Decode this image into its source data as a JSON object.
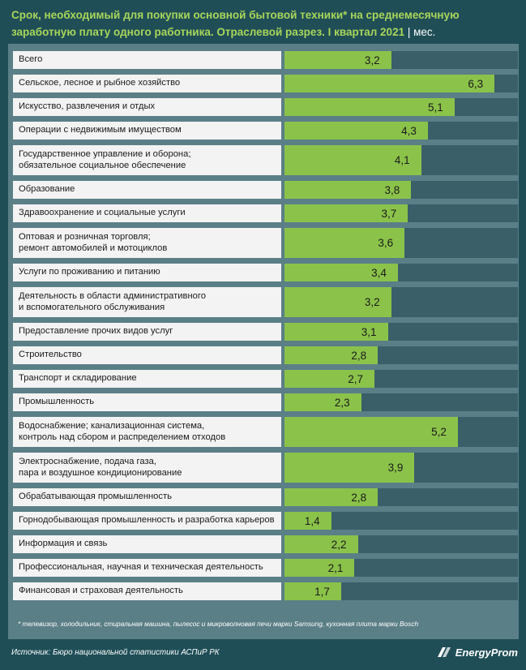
{
  "title": "Срок, необходимый для покупки основной бытовой техники* на среднемесячную заработную плату одного работника. Отраслевой разрез. I квартал 2021",
  "unit": "| мес.",
  "chart_data": {
    "type": "bar",
    "orientation": "horizontal",
    "title": "Срок, необходимый для покупки основной бытовой техники* на среднемесячную заработную плату одного работника. Отраслевой разрез. I квартал 2021",
    "unit": "мес.",
    "xlim": [
      0,
      7
    ],
    "categories": [
      "Всего",
      "Сельское, лесное и рыбное хозяйство",
      "Искусство, развлечения и отдых",
      "Операции с недвижимым имуществом",
      "Государственное управление и оборона;\nобязательное социальное обеспечение",
      "Образование",
      "Здравоохранение и социальные услуги",
      "Оптовая и розничная торговля;\nремонт автомобилей и мотоциклов",
      "Услуги по проживанию и питанию",
      "Деятельность в области административного\nи вспомогательного обслуживания",
      "Предоставление прочих видов услуг",
      "Строительство",
      "Транспорт и складирование",
      "Промышленность",
      "Водоснабжение; канализационная система,\nконтроль над сбором и распределением отходов",
      "Электроснабжение, подача газа,\nпара и воздушное кондиционирование",
      "Обрабатывающая промышленность",
      "Горнодобывающая промышленность и разработка карьеров",
      "Информация и связь",
      "Профессиональная, научная и техническая деятельность",
      "Финансовая и страховая деятельность"
    ],
    "values": [
      3.2,
      6.3,
      5.1,
      4.3,
      4.1,
      3.8,
      3.7,
      3.6,
      3.4,
      3.2,
      3.1,
      2.8,
      2.7,
      2.3,
      5.2,
      3.9,
      2.8,
      1.4,
      2.2,
      2.1,
      1.7
    ],
    "value_labels": [
      "3,2",
      "6,3",
      "5,1",
      "4,3",
      "4,1",
      "3,8",
      "3,7",
      "3,6",
      "3,4",
      "3,2",
      "3,1",
      "2,8",
      "2,7",
      "2,3",
      "5,2",
      "3,9",
      "2,8",
      "1,4",
      "2,2",
      "2,1",
      "1,7"
    ],
    "bar_color": "#8bc34a"
  },
  "footnote": "* телевизор, холодильник, стиральная машина, пылесос и микроволновая печи марки Samsung, кухонная плита марки Bosch",
  "source": "Источник: Бюро национальной  статистики АСПиР РК",
  "logo": "EnergyProm",
  "colors": {
    "background": "#1f4e57",
    "title": "#a8d65a",
    "bar": "#8bc34a",
    "panel": "#5b7f87",
    "track": "#3a5f68"
  }
}
